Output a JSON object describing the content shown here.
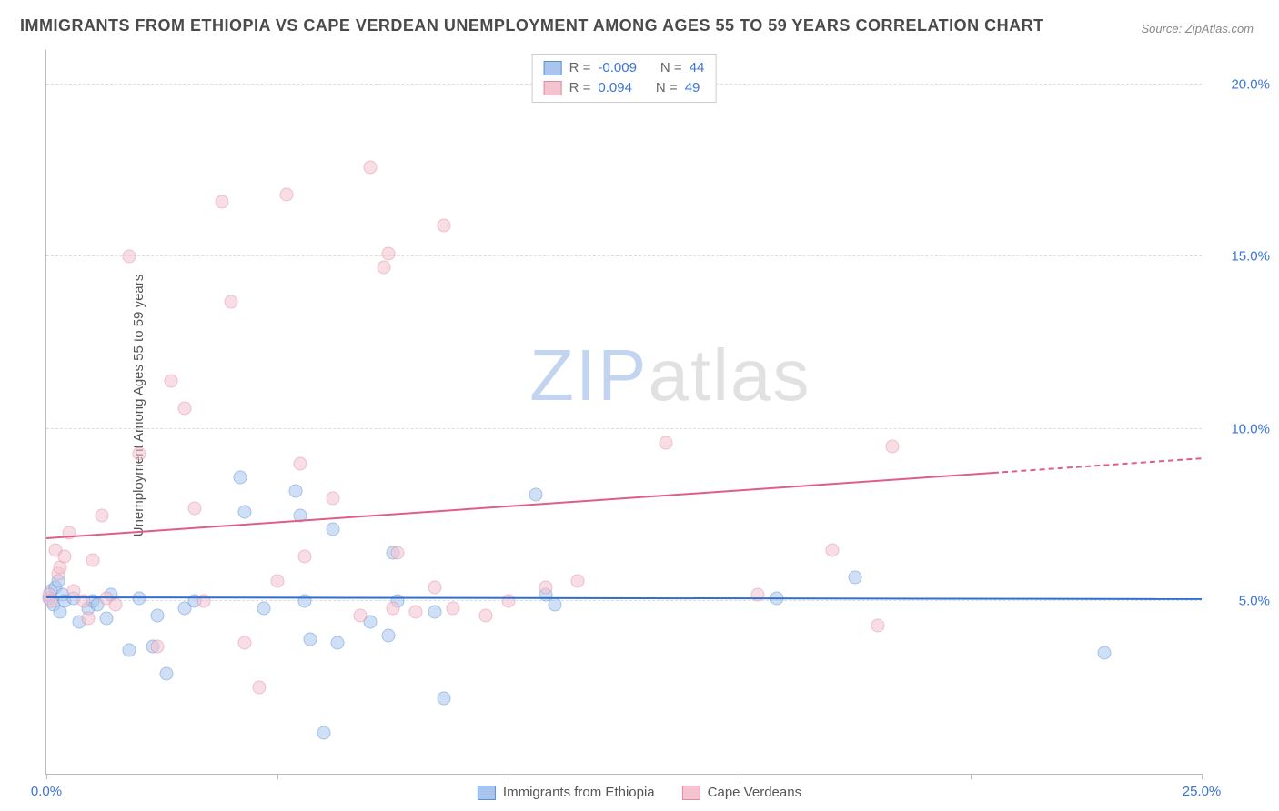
{
  "title": "IMMIGRANTS FROM ETHIOPIA VS CAPE VERDEAN UNEMPLOYMENT AMONG AGES 55 TO 59 YEARS CORRELATION CHART",
  "source_label": "Source: ZipAtlas.com",
  "y_axis_label": "Unemployment Among Ages 55 to 59 years",
  "watermark": {
    "part1": "Z",
    "part2": "IP",
    "part3": "atlas"
  },
  "chart": {
    "type": "scatter",
    "background_color": "#ffffff",
    "grid_color": "#dddddd",
    "axis_color": "#bbbbbb",
    "xlim": [
      0,
      25
    ],
    "ylim": [
      0,
      21
    ],
    "x_ticks": [
      0,
      5,
      10,
      15,
      20,
      25
    ],
    "x_tick_labels": {
      "0": "0.0%",
      "25": "25.0%"
    },
    "y_ticks": [
      5,
      10,
      15,
      20
    ],
    "y_tick_labels": {
      "5": "5.0%",
      "10": "10.0%",
      "15": "15.0%",
      "20": "20.0%"
    },
    "tick_label_color": "#3b74d8",
    "tick_label_fontsize": 15,
    "marker_radius": 7.5,
    "marker_opacity": 0.55,
    "series": [
      {
        "name": "Immigrants from Ethiopia",
        "fill_color": "#a9c5ee",
        "stroke_color": "#5a8fd6",
        "trend_color": "#2f6fd0",
        "R": "-0.009",
        "N": "44",
        "trend": {
          "x1": 0,
          "y1": 5.1,
          "x2": 25,
          "y2": 5.05,
          "dash_from_x": 25
        },
        "points": [
          [
            0.05,
            5.1
          ],
          [
            0.1,
            5.3
          ],
          [
            0.15,
            4.9
          ],
          [
            0.2,
            5.4
          ],
          [
            0.3,
            4.7
          ],
          [
            0.35,
            5.2
          ],
          [
            0.4,
            5.0
          ],
          [
            0.6,
            5.1
          ],
          [
            0.7,
            4.4
          ],
          [
            0.9,
            4.8
          ],
          [
            1.0,
            5.0
          ],
          [
            1.1,
            4.9
          ],
          [
            1.3,
            4.5
          ],
          [
            1.4,
            5.2
          ],
          [
            1.8,
            3.6
          ],
          [
            2.0,
            5.1
          ],
          [
            2.3,
            3.7
          ],
          [
            2.4,
            4.6
          ],
          [
            2.6,
            2.9
          ],
          [
            3.0,
            4.8
          ],
          [
            3.2,
            5.0
          ],
          [
            4.2,
            8.6
          ],
          [
            4.3,
            7.6
          ],
          [
            4.7,
            4.8
          ],
          [
            5.4,
            8.2
          ],
          [
            5.5,
            7.5
          ],
          [
            5.6,
            5.0
          ],
          [
            5.7,
            3.9
          ],
          [
            6.0,
            1.2
          ],
          [
            6.2,
            7.1
          ],
          [
            6.3,
            3.8
          ],
          [
            7.0,
            4.4
          ],
          [
            7.4,
            4.0
          ],
          [
            7.5,
            6.4
          ],
          [
            7.6,
            5.0
          ],
          [
            8.4,
            4.7
          ],
          [
            8.6,
            2.2
          ],
          [
            10.6,
            8.1
          ],
          [
            10.8,
            5.2
          ],
          [
            11.0,
            4.9
          ],
          [
            15.8,
            5.1
          ],
          [
            17.5,
            5.7
          ],
          [
            22.9,
            3.5
          ],
          [
            0.25,
            5.6
          ]
        ]
      },
      {
        "name": "Cape Verdeans",
        "fill_color": "#f4c3d0",
        "stroke_color": "#e08aa3",
        "trend_color": "#e05e85",
        "R": "0.094",
        "N": "49",
        "trend": {
          "x1": 0,
          "y1": 6.8,
          "x2": 20.5,
          "y2": 8.7,
          "dash_from_x": 20.5
        },
        "points": [
          [
            0.05,
            5.2
          ],
          [
            0.1,
            5.0
          ],
          [
            0.2,
            6.5
          ],
          [
            0.25,
            5.8
          ],
          [
            0.3,
            6.0
          ],
          [
            0.4,
            6.3
          ],
          [
            0.5,
            7.0
          ],
          [
            0.6,
            5.3
          ],
          [
            0.8,
            5.0
          ],
          [
            0.9,
            4.5
          ],
          [
            1.0,
            6.2
          ],
          [
            1.2,
            7.5
          ],
          [
            1.3,
            5.1
          ],
          [
            1.5,
            4.9
          ],
          [
            1.8,
            15.0
          ],
          [
            2.0,
            9.3
          ],
          [
            2.4,
            3.7
          ],
          [
            2.7,
            11.4
          ],
          [
            3.0,
            10.6
          ],
          [
            3.2,
            7.7
          ],
          [
            3.4,
            5.0
          ],
          [
            3.8,
            16.6
          ],
          [
            4.0,
            13.7
          ],
          [
            4.3,
            3.8
          ],
          [
            5.0,
            5.6
          ],
          [
            5.2,
            16.8
          ],
          [
            5.5,
            9.0
          ],
          [
            5.6,
            6.3
          ],
          [
            6.2,
            8.0
          ],
          [
            6.8,
            4.6
          ],
          [
            7.0,
            17.6
          ],
          [
            7.3,
            14.7
          ],
          [
            7.4,
            15.1
          ],
          [
            7.5,
            4.8
          ],
          [
            7.6,
            6.4
          ],
          [
            8.0,
            4.7
          ],
          [
            8.4,
            5.4
          ],
          [
            8.6,
            15.9
          ],
          [
            8.8,
            4.8
          ],
          [
            9.5,
            4.6
          ],
          [
            10.0,
            5.0
          ],
          [
            10.8,
            5.4
          ],
          [
            11.5,
            5.6
          ],
          [
            13.4,
            9.6
          ],
          [
            15.4,
            5.2
          ],
          [
            17.0,
            6.5
          ],
          [
            18.0,
            4.3
          ],
          [
            18.3,
            9.5
          ],
          [
            4.6,
            2.5
          ]
        ]
      }
    ]
  },
  "legend_top": {
    "rows": [
      {
        "swatch_series": 0,
        "r_label": "R =",
        "r_value": "-0.009",
        "n_label": "N =",
        "n_value": "44"
      },
      {
        "swatch_series": 1,
        "r_label": "R =",
        "r_value": " 0.094",
        "n_label": "N =",
        "n_value": "49"
      }
    ]
  },
  "legend_bottom": [
    {
      "swatch_series": 0,
      "label": "Immigrants from Ethiopia"
    },
    {
      "swatch_series": 1,
      "label": "Cape Verdeans"
    }
  ]
}
